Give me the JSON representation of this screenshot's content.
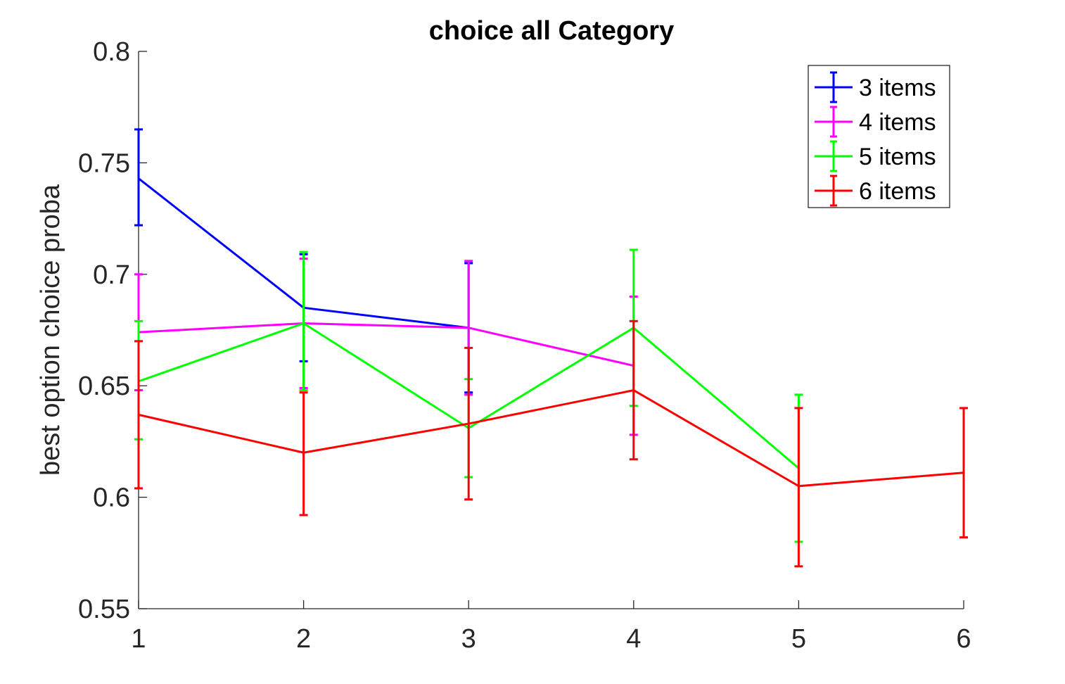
{
  "chart_data": {
    "type": "line",
    "title": "choice all Category",
    "xlabel": "",
    "ylabel": "best option choice proba",
    "xlim": [
      1,
      6
    ],
    "ylim": [
      0.55,
      0.8
    ],
    "x_ticks": [
      "1",
      "2",
      "3",
      "4",
      "5",
      "6"
    ],
    "y_ticks": [
      "0.55",
      "0.6",
      "0.65",
      "0.7",
      "0.75",
      "0.8"
    ],
    "grid": false,
    "legend_position": "top-right",
    "series": [
      {
        "name": "3 items",
        "color": "#0000ff",
        "x": [
          1,
          2,
          3
        ],
        "y": [
          0.743,
          0.685,
          0.676
        ],
        "err_low": [
          0.722,
          0.661,
          0.647
        ],
        "err_high": [
          0.765,
          0.709,
          0.705
        ]
      },
      {
        "name": "4 items",
        "color": "#ff00ff",
        "x": [
          1,
          2,
          3,
          4
        ],
        "y": [
          0.674,
          0.678,
          0.676,
          0.659
        ],
        "err_low": [
          0.648,
          0.649,
          0.646,
          0.628
        ],
        "err_high": [
          0.7,
          0.707,
          0.706,
          0.69
        ]
      },
      {
        "name": "5 items",
        "color": "#00ff00",
        "x": [
          1,
          2,
          3,
          4,
          5
        ],
        "y": [
          0.652,
          0.678,
          0.631,
          0.676,
          0.613
        ],
        "err_low": [
          0.626,
          0.648,
          0.609,
          0.641,
          0.58
        ],
        "err_high": [
          0.679,
          0.71,
          0.653,
          0.711,
          0.646
        ]
      },
      {
        "name": "6 items",
        "color": "#ff0000",
        "x": [
          1,
          2,
          3,
          4,
          5,
          6
        ],
        "y": [
          0.637,
          0.62,
          0.633,
          0.648,
          0.605,
          0.611
        ],
        "err_low": [
          0.604,
          0.592,
          0.599,
          0.617,
          0.569,
          0.582
        ],
        "err_high": [
          0.67,
          0.647,
          0.667,
          0.679,
          0.64,
          0.64
        ]
      }
    ]
  }
}
